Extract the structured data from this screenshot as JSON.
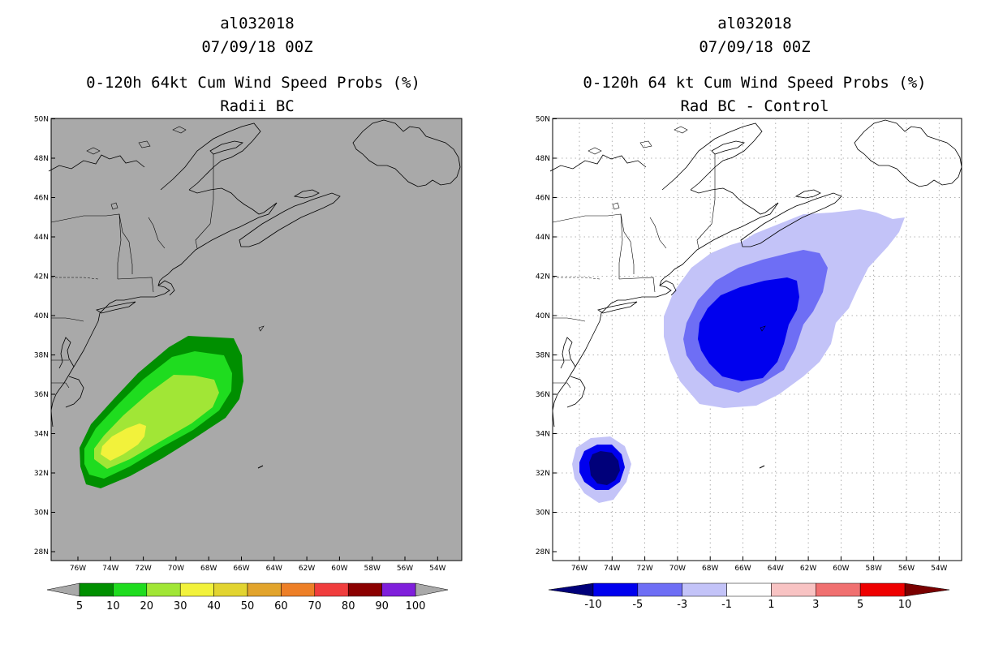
{
  "left_panel": {
    "storm_id": "al032018",
    "datetime": "07/09/18 00Z",
    "title": "0-120h 64kt Cum Wind Speed Probs (%)",
    "subtitle": "Radii BC",
    "background_color": "#a9a9a9",
    "colorbar": {
      "colors": [
        "#008f00",
        "#1fdc1f",
        "#a1e636",
        "#f2f23b",
        "#e2d430",
        "#e2a42c",
        "#ed7f27",
        "#f03d3d",
        "#8b0000",
        "#7f1fdb"
      ],
      "labels": [
        "5",
        "10",
        "20",
        "30",
        "40",
        "50",
        "60",
        "70",
        "80",
        "90",
        "100"
      ]
    }
  },
  "right_panel": {
    "storm_id": "al032018",
    "datetime": "07/09/18 00Z",
    "title": "0-120h 64 kt Cum Wind Speed Probs (%)",
    "subtitle": "Rad BC - Control",
    "background_color": "#ffffff",
    "colorbar": {
      "colors": [
        "#00007a",
        "#0000ee",
        "#6e6ef5",
        "#c3c3f8",
        "#ffffff",
        "#f8c3c3",
        "#f07070",
        "#ee0000",
        "#7a0000"
      ],
      "labels": [
        "-10",
        "-5",
        "-3",
        "-1",
        "1",
        "3",
        "5",
        "10"
      ]
    }
  },
  "axes": {
    "lat_labels": [
      "28N",
      "30N",
      "32N",
      "34N",
      "36N",
      "38N",
      "40N",
      "42N",
      "44N",
      "46N",
      "48N",
      "50N"
    ],
    "lon_labels": [
      "76W",
      "74W",
      "72W",
      "70W",
      "68W",
      "66W",
      "64W",
      "62W",
      "60W",
      "58W",
      "56W",
      "54W"
    ]
  }
}
